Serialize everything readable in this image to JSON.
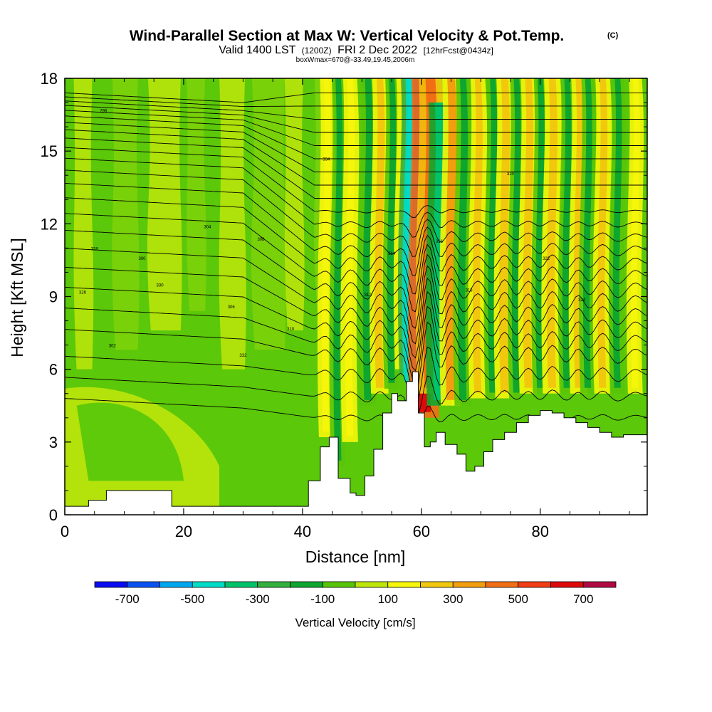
{
  "title": {
    "main": "Wind-Parallel Section at Max W: Vertical Velocity & Pot.Temp.",
    "copyright": "(C)",
    "valid_prefix": "Valid 1400 LST",
    "valid_utc": "(1200Z)",
    "valid_date": "FRI 2 Dec 2022",
    "forecast": "[12hrFcst@0434z]",
    "box_info": "boxWmax=670@-33.49,19.45,2006m"
  },
  "chart_data": {
    "type": "heatmap",
    "title": "Wind-Parallel Section at Max W: Vertical Velocity & Pot.Temp.",
    "xlabel": "Distance [nm]",
    "ylabel": "Height [Kft MSL]",
    "xlim": [
      0,
      98
    ],
    "ylim": [
      0,
      18
    ],
    "x_ticks": [
      0,
      20,
      40,
      60,
      80
    ],
    "x_tick_labels": [
      "0",
      "20",
      "40",
      "60",
      "80"
    ],
    "y_ticks": [
      0,
      3,
      6,
      9,
      12,
      15,
      18
    ],
    "y_tick_labels": [
      "0",
      "3",
      "6",
      "9",
      "12",
      "15",
      "18"
    ],
    "terrain_profile": {
      "x_nm": [
        0,
        3.5,
        4,
        6.5,
        7,
        17.5,
        18,
        20,
        40.5,
        41,
        43,
        44.5,
        46,
        48,
        49,
        50.5,
        52,
        53.5,
        55,
        56,
        57.5,
        58.5,
        59.5,
        60.5,
        61.5,
        62.5,
        64,
        66,
        67.5,
        69,
        70.5,
        72,
        74,
        76,
        78,
        80,
        82,
        84,
        86,
        88,
        90,
        92,
        94,
        98
      ],
      "height_kft": [
        0.35,
        0.35,
        0.6,
        0.6,
        1.0,
        1.0,
        0.35,
        0.35,
        0.35,
        1.4,
        2.8,
        3.2,
        1.5,
        0.9,
        0.8,
        1.6,
        2.7,
        4.2,
        5.0,
        4.7,
        5.5,
        5.9,
        4.2,
        2.8,
        3.0,
        3.4,
        2.9,
        2.5,
        1.8,
        2.0,
        2.6,
        3.1,
        3.4,
        3.8,
        4.1,
        4.3,
        4.2,
        4.0,
        3.8,
        3.6,
        3.4,
        3.2,
        3.3,
        3.3
      ]
    },
    "wave_cells": {
      "x_nm": [
        44,
        46,
        48,
        51,
        53,
        55,
        57,
        58.5,
        59.5,
        60.5,
        61.5,
        63,
        65,
        67,
        69.5,
        72,
        74,
        76,
        78,
        80,
        82,
        84.5,
        86.5,
        88,
        90.5,
        93,
        96
      ],
      "w_cm_s": [
        150,
        -150,
        180,
        -200,
        220,
        -150,
        200,
        -450,
        -650,
        670,
        450,
        -400,
        300,
        -200,
        200,
        -150,
        250,
        -150,
        220,
        -150,
        250,
        -150,
        220,
        -150,
        200,
        -150,
        150
      ],
      "bottom_kft": [
        3.2,
        2.0,
        3.0,
        4.5,
        5.0,
        5.2,
        6.0,
        5.8,
        5.5,
        4.0,
        5.0,
        4.5,
        4.5,
        4.5,
        4.8,
        4.8,
        4.8,
        4.8,
        5.0,
        5.0,
        5.0,
        5.0,
        5.0,
        5.0,
        5.0,
        5.0,
        5.0
      ],
      "top_kft": [
        18,
        18,
        18,
        18,
        18,
        18,
        18,
        18,
        18,
        18,
        18,
        17,
        18,
        18,
        18,
        18,
        18,
        18,
        18,
        18,
        18,
        18,
        18,
        18,
        18,
        18,
        18
      ]
    },
    "theta_contour_levels_k": [
      294,
      296,
      298,
      300,
      302,
      304,
      306,
      308,
      310,
      312,
      314,
      316,
      318,
      320,
      322,
      324,
      326,
      328,
      330,
      332,
      334,
      336,
      338,
      340
    ],
    "theta_label_samples_k": [
      "298",
      "300",
      "302",
      "304",
      "306",
      "308",
      "310",
      "312",
      "314",
      "316",
      "318",
      "320",
      "322",
      "324",
      "326",
      "328",
      "330",
      "332",
      "334"
    ],
    "colorbar": {
      "label": "Vertical Velocity [cm/s]",
      "bounds": [
        -800,
        800
      ],
      "levels": [
        -800,
        -700,
        -600,
        -500,
        -400,
        -300,
        -200,
        -100,
        0,
        100,
        200,
        300,
        400,
        500,
        600,
        700,
        800
      ],
      "colors": [
        "#0b0bf2",
        "#0b52f2",
        "#00a8f0",
        "#00dcc8",
        "#00c36a",
        "#33b13e",
        "#0ea62e",
        "#58c408",
        "#bde60a",
        "#f6f60a",
        "#f2c80e",
        "#f29e0e",
        "#f26e14",
        "#f23c14",
        "#de0a0a",
        "#b00a42"
      ],
      "tick_values": [
        -700,
        -500,
        -300,
        -100,
        100,
        300,
        500,
        700
      ],
      "tick_labels": [
        "-700",
        "-500",
        "-300",
        "-100",
        "100",
        "300",
        "500",
        "700"
      ]
    }
  }
}
